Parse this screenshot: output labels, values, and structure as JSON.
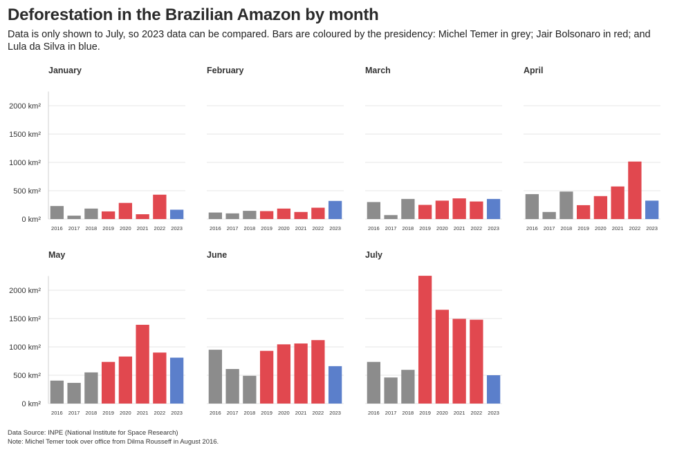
{
  "header": {
    "title": "Deforestation in the Brazilian Amazon by month",
    "subtitle": "Data is only shown to July, so 2023 data can be compared. Bars are coloured by the presidency: Michel Temer in grey; Jair Bolsonaro in red; and Lula da Silva in blue."
  },
  "footer": {
    "source": "Data Source: INPE (National Institute for Space Research)",
    "note": "Note: Michel Temer took over office from Dilma Rousseff in August 2016."
  },
  "colors": {
    "Temer": "#8c8c8c",
    "Bolsonaro": "#e1484f",
    "Lula": "#5b7fcb",
    "grid": "#e6e6e6"
  },
  "chart_data": {
    "type": "bar",
    "title": "Deforestation in the Brazilian Amazon by month",
    "ylim": [
      0,
      2250
    ],
    "yticks": [
      0,
      500,
      1000,
      1500,
      2000
    ],
    "ytick_labels": [
      "0 km²",
      "500 km²",
      "1000 km²",
      "1500 km²",
      "2000 km²"
    ],
    "grid": true,
    "categories": [
      "2016",
      "2017",
      "2018",
      "2019",
      "2020",
      "2021",
      "2022",
      "2023"
    ],
    "presidency": [
      "Temer",
      "Temer",
      "Temer",
      "Bolsonaro",
      "Bolsonaro",
      "Bolsonaro",
      "Bolsonaro",
      "Lula"
    ],
    "panels": [
      {
        "name": "January",
        "values": [
          230,
          60,
          185,
          135,
          285,
          85,
          430,
          165
        ]
      },
      {
        "name": "February",
        "values": [
          115,
          100,
          145,
          140,
          185,
          125,
          200,
          320
        ]
      },
      {
        "name": "March",
        "values": [
          300,
          70,
          355,
          250,
          325,
          365,
          310,
          355
        ]
      },
      {
        "name": "April",
        "values": [
          440,
          125,
          485,
          245,
          405,
          575,
          1015,
          325
        ]
      },
      {
        "name": "May",
        "values": [
          405,
          365,
          550,
          735,
          830,
          1390,
          900,
          810
        ]
      },
      {
        "name": "June",
        "values": [
          950,
          610,
          490,
          930,
          1045,
          1060,
          1120,
          660
        ]
      },
      {
        "name": "July",
        "values": [
          735,
          460,
          595,
          2255,
          1655,
          1495,
          1480,
          500
        ]
      }
    ]
  }
}
